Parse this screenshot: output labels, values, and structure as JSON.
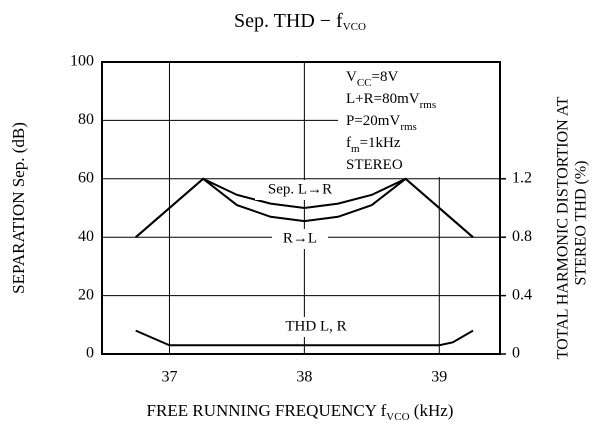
{
  "chart_data": {
    "type": "line",
    "title": [
      "Sep. THD − f",
      "VCO"
    ],
    "xlabel": [
      "FREE RUNNING FREQUENCY f",
      "VCO",
      " (kHz)"
    ],
    "ylabel": "SEPARATION Sep. (dB)",
    "y2label": [
      "TOTAL HARMONIC DISTORTION AT",
      "STEREO THD (%)"
    ],
    "xlim": [
      36.5,
      39.45
    ],
    "xticks": [
      37,
      38,
      39
    ],
    "ylim": [
      0,
      100
    ],
    "yticks": [
      0,
      20,
      40,
      60,
      80,
      100
    ],
    "y2lim": [
      0,
      2.0
    ],
    "y2ticks": [
      0,
      0.4,
      0.8,
      1.2
    ],
    "grid": true,
    "conditions": [
      [
        "V",
        "CC",
        "=8V"
      ],
      [
        "L+R=80mV",
        "rms"
      ],
      [
        "P=20mV",
        "rms"
      ],
      [
        "f",
        "m",
        "=1kHz"
      ],
      [
        "STEREO"
      ]
    ],
    "series": [
      {
        "name": "Sep. L→R",
        "color": "#000000",
        "x": [
          36.75,
          37,
          37.25,
          37.5,
          37.75,
          38,
          38.25,
          38.5,
          38.75,
          39,
          39.25
        ],
        "values": [
          40,
          50,
          60,
          54.5,
          51.5,
          50,
          51.5,
          54.5,
          60,
          50,
          40
        ]
      },
      {
        "name": "R→L",
        "color": "#000000",
        "x": [
          36.75,
          37,
          37.25,
          37.5,
          37.75,
          38,
          38.25,
          38.5,
          38.75,
          39,
          39.25
        ],
        "values": [
          40,
          50,
          60,
          51,
          47,
          45.5,
          47,
          51,
          60,
          50,
          40
        ]
      },
      {
        "name": "THD L, R",
        "color": "#000000",
        "axis": "y2",
        "x": [
          36.75,
          37,
          39,
          39.1,
          39.25
        ],
        "values": [
          0.16,
          0.06,
          0.06,
          0.08,
          0.16
        ]
      }
    ]
  }
}
